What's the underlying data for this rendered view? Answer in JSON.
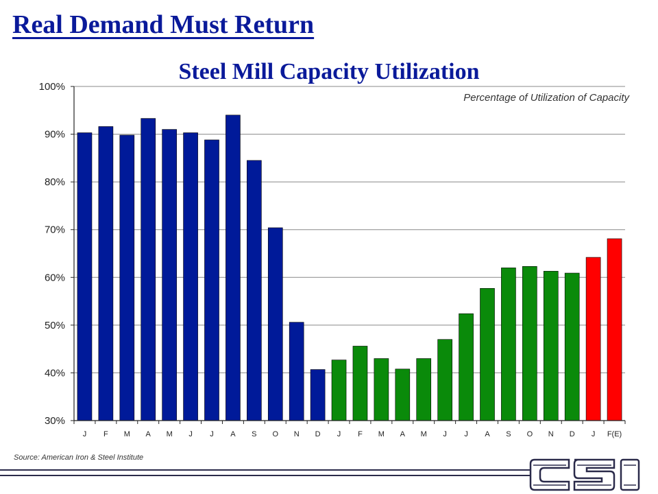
{
  "slide": {
    "title": "Real Demand Must Return",
    "source": "Source: American Iron & Steel Institute"
  },
  "colors": {
    "title": "#0a1a9a",
    "bar_blue": "#001a99",
    "bar_green": "#0a8a0a",
    "bar_red": "#ff0000",
    "gridline": "#888888"
  },
  "chart_data": {
    "type": "bar",
    "title": "Steel Mill Capacity Utilization",
    "subtitle": "Percentage of Utilization of Capacity",
    "xlabel": "",
    "ylabel": "",
    "ylim": [
      30,
      100
    ],
    "y_ticks": [
      "30%",
      "40%",
      "50%",
      "60%",
      "70%",
      "80%",
      "90%",
      "100%"
    ],
    "y_tick_values": [
      30,
      40,
      50,
      60,
      70,
      80,
      90,
      100
    ],
    "grid": true,
    "categories": [
      "J",
      "F",
      "M",
      "A",
      "M",
      "J",
      "J",
      "A",
      "S",
      "O",
      "N",
      "D",
      "J",
      "F",
      "M",
      "A",
      "M",
      "J",
      "J",
      "A",
      "S",
      "O",
      "N",
      "D",
      "J",
      "F(E)"
    ],
    "values": [
      90.3,
      91.6,
      89.8,
      93.3,
      91.0,
      90.3,
      88.8,
      94.0,
      84.5,
      70.4,
      50.6,
      40.7,
      42.7,
      45.6,
      43.0,
      40.8,
      43.0,
      47.0,
      52.4,
      57.7,
      62.0,
      62.3,
      61.3,
      60.9,
      64.2,
      68.1
    ],
    "bar_colors": [
      "#001a99",
      "#001a99",
      "#001a99",
      "#001a99",
      "#001a99",
      "#001a99",
      "#001a99",
      "#001a99",
      "#001a99",
      "#001a99",
      "#001a99",
      "#001a99",
      "#0a8a0a",
      "#0a8a0a",
      "#0a8a0a",
      "#0a8a0a",
      "#0a8a0a",
      "#0a8a0a",
      "#0a8a0a",
      "#0a8a0a",
      "#0a8a0a",
      "#0a8a0a",
      "#0a8a0a",
      "#0a8a0a",
      "#ff0000",
      "#ff0000"
    ]
  }
}
